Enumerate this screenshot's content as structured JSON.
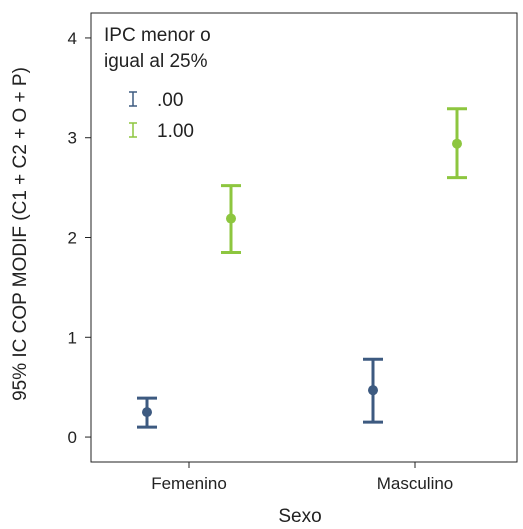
{
  "chart_data": {
    "type": "errorbar",
    "categories": [
      "Femenino",
      "Masculino"
    ],
    "xlabel": "Sexo",
    "ylabel": "95% IC COP MODIF (C1 + C2 + O + P)",
    "ylim": [
      -0.25,
      4.25
    ],
    "yticks": [
      0,
      1,
      2,
      3,
      4
    ],
    "ytick_labels": [
      "0",
      "1",
      "2",
      "3",
      "4"
    ],
    "grid": false,
    "legend": {
      "title_lines": [
        "IPC menor o",
        "igual al 25%"
      ],
      "placement": "top-left"
    },
    "series": [
      {
        "name": ".00",
        "color": "#3d5a80",
        "mean": [
          0.25,
          0.47
        ],
        "lower": [
          0.1,
          0.15
        ],
        "upper": [
          0.39,
          0.78
        ]
      },
      {
        "name": "1.00",
        "color": "#8dc63f",
        "mean": [
          2.19,
          2.94
        ],
        "lower": [
          1.85,
          2.6
        ],
        "upper": [
          2.52,
          3.29
        ]
      }
    ]
  }
}
